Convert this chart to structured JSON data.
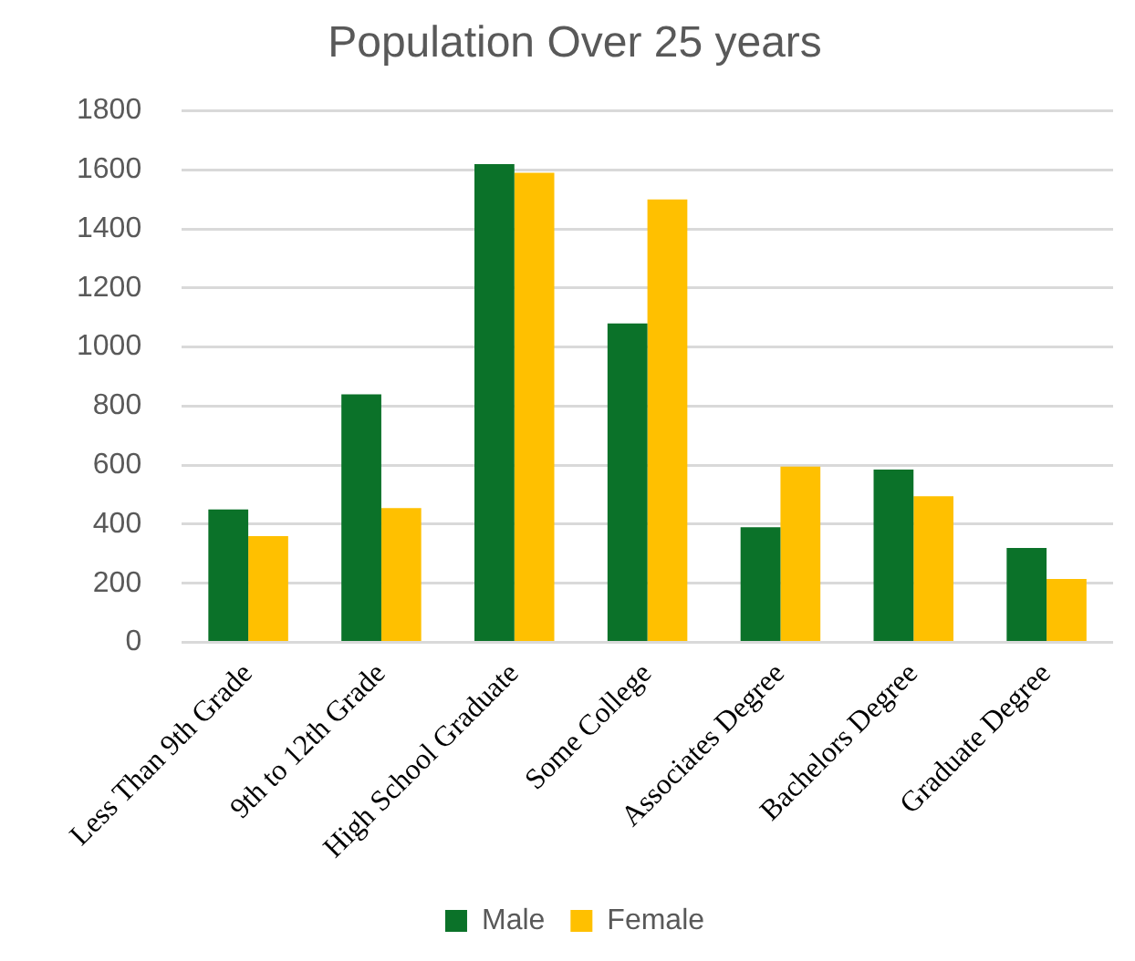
{
  "chart_data": {
    "type": "bar",
    "title": "Population Over 25 years",
    "categories": [
      "Less Than 9th Grade",
      "9th to 12th Grade",
      "High School Graduate",
      "Some College",
      "Associates Degree",
      "Bachelors Degree",
      "Graduate Degree"
    ],
    "series": [
      {
        "name": "Male",
        "color": "#0b7229",
        "values": [
          450,
          840,
          1620,
          1080,
          390,
          585,
          320
        ]
      },
      {
        "name": "Female",
        "color": "#ffc000",
        "values": [
          360,
          455,
          1590,
          1500,
          595,
          495,
          215
        ]
      }
    ],
    "ylim": [
      0,
      1800
    ],
    "yticks": [
      0,
      200,
      400,
      600,
      800,
      1000,
      1200,
      1400,
      1600,
      1800
    ],
    "grid": "y",
    "legend": "bottom"
  }
}
